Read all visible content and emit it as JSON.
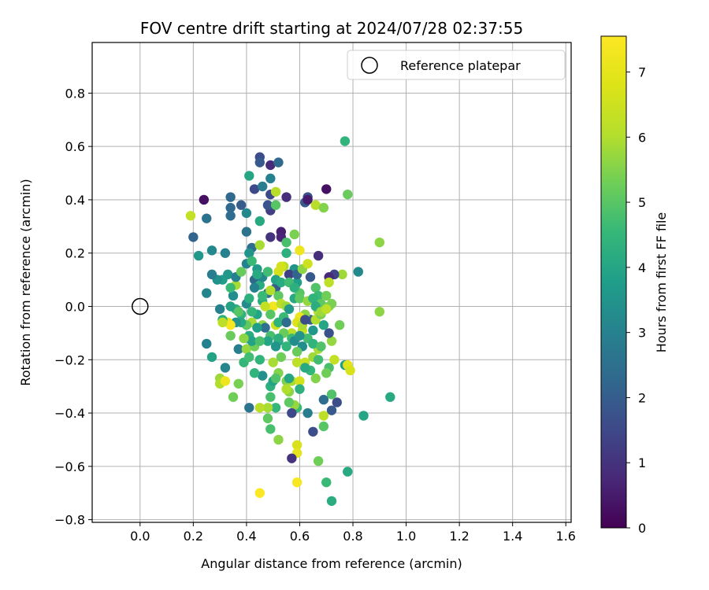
{
  "chart_data": {
    "type": "scatter",
    "title": "FOV centre drift starting at 2024/07/28 02:37:55",
    "xlabel": "Angular distance from reference (arcmin)",
    "ylabel": "Rotation from reference (arcmin)",
    "xlim": [
      -0.18,
      1.62
    ],
    "ylim": [
      -0.81,
      0.99
    ],
    "xticks": [
      0.0,
      0.2,
      0.4,
      0.6,
      0.8,
      1.0,
      1.2,
      1.4,
      1.6
    ],
    "xtick_labels": [
      "0.0",
      "0.2",
      "0.4",
      "0.6",
      "0.8",
      "1.0",
      "1.2",
      "1.4",
      "1.6"
    ],
    "yticks": [
      -0.8,
      -0.6,
      -0.4,
      -0.2,
      0.0,
      0.2,
      0.4,
      0.6,
      0.8
    ],
    "ytick_labels": [
      "−0.8",
      "−0.6",
      "−0.4",
      "−0.2",
      "0.0",
      "0.2",
      "0.4",
      "0.6",
      "0.8"
    ],
    "grid": true,
    "legend": {
      "placement": "top-right",
      "label": "Reference platepar"
    },
    "reference_point": {
      "x": 0.0,
      "y": 0.0
    },
    "colorbar": {
      "label": "Hours from first FF file",
      "range": [
        0,
        7.55
      ],
      "ticks": [
        0,
        1,
        2,
        3,
        4,
        5,
        6,
        7
      ],
      "tick_labels": [
        "0",
        "1",
        "2",
        "3",
        "4",
        "5",
        "6",
        "7"
      ],
      "colormap": "viridis"
    },
    "points": [
      [
        0.24,
        0.4,
        0.3
      ],
      [
        0.32,
        0.2,
        3.0
      ],
      [
        0.2,
        0.26,
        2.2
      ],
      [
        0.25,
        0.33,
        2.6
      ],
      [
        0.19,
        0.34,
        6.3
      ],
      [
        0.22,
        0.19,
        3.6
      ],
      [
        0.27,
        0.21,
        3.2
      ],
      [
        0.34,
        0.41,
        2.3
      ],
      [
        0.34,
        0.37,
        2.3
      ],
      [
        0.38,
        0.38,
        2.0
      ],
      [
        0.34,
        0.34,
        2.4
      ],
      [
        0.41,
        0.49,
        4.0
      ],
      [
        0.43,
        0.44,
        1.5
      ],
      [
        0.45,
        0.56,
        1.6
      ],
      [
        0.45,
        0.54,
        1.9
      ],
      [
        0.49,
        0.53,
        0.8
      ],
      [
        0.52,
        0.54,
        2.3
      ],
      [
        0.46,
        0.45,
        2.9
      ],
      [
        0.49,
        0.48,
        3.0
      ],
      [
        0.49,
        0.42,
        1.5
      ],
      [
        0.51,
        0.43,
        6.1
      ],
      [
        0.55,
        0.41,
        0.9
      ],
      [
        0.4,
        0.35,
        3.2
      ],
      [
        0.45,
        0.32,
        4.1
      ],
      [
        0.49,
        0.36,
        1.3
      ],
      [
        0.48,
        0.38,
        1.8
      ],
      [
        0.51,
        0.38,
        5.0
      ],
      [
        0.53,
        0.28,
        0.6
      ],
      [
        0.53,
        0.26,
        0.7
      ],
      [
        0.49,
        0.26,
        1.0
      ],
      [
        0.4,
        0.28,
        2.6
      ],
      [
        0.42,
        0.22,
        2.4
      ],
      [
        0.41,
        0.2,
        3.5
      ],
      [
        0.45,
        0.23,
        5.9
      ],
      [
        0.55,
        0.24,
        4.8
      ],
      [
        0.55,
        0.2,
        4.3
      ],
      [
        0.58,
        0.27,
        5.4
      ],
      [
        0.6,
        0.21,
        7.2
      ],
      [
        0.62,
        0.39,
        1.9
      ],
      [
        0.63,
        0.41,
        1.7
      ],
      [
        0.63,
        0.4,
        0.5
      ],
      [
        0.66,
        0.38,
        6.1
      ],
      [
        0.7,
        0.44,
        0.3
      ],
      [
        0.69,
        0.37,
        5.5
      ],
      [
        0.77,
        0.62,
        4.4
      ],
      [
        0.78,
        0.42,
        5.2
      ],
      [
        0.9,
        0.24,
        5.6
      ],
      [
        0.82,
        0.13,
        3.2
      ],
      [
        0.76,
        0.12,
        5.8
      ],
      [
        0.73,
        0.12,
        1.4
      ],
      [
        0.67,
        0.19,
        0.9
      ],
      [
        0.71,
        0.11,
        0.8
      ],
      [
        0.71,
        0.09,
        6.2
      ],
      [
        0.72,
        0.01,
        5.4
      ],
      [
        0.75,
        -0.07,
        5.3
      ],
      [
        0.72,
        -0.13,
        5.7
      ],
      [
        0.73,
        -0.2,
        6.3
      ],
      [
        0.77,
        -0.22,
        3.8
      ],
      [
        0.78,
        -0.22,
        6.9
      ],
      [
        0.79,
        -0.24,
        6.7
      ],
      [
        0.71,
        -0.23,
        4.8
      ],
      [
        0.7,
        -0.25,
        5.3
      ],
      [
        0.74,
        -0.36,
        1.6
      ],
      [
        0.72,
        -0.33,
        4.9
      ],
      [
        0.72,
        -0.39,
        1.9
      ],
      [
        0.69,
        -0.35,
        2.4
      ],
      [
        0.69,
        -0.41,
        6.2
      ],
      [
        0.65,
        -0.47,
        1.6
      ],
      [
        0.69,
        -0.45,
        5.0
      ],
      [
        0.67,
        -0.58,
        5.3
      ],
      [
        0.7,
        -0.66,
        4.6
      ],
      [
        0.72,
        -0.73,
        4.2
      ],
      [
        0.78,
        -0.62,
        4.1
      ],
      [
        0.84,
        -0.41,
        4.0
      ],
      [
        0.94,
        -0.34,
        4.1
      ],
      [
        0.9,
        -0.02,
        5.6
      ],
      [
        0.63,
        -0.4,
        2.9
      ],
      [
        0.59,
        -0.38,
        4.6
      ],
      [
        0.58,
        -0.37,
        5.7
      ],
      [
        0.56,
        -0.36,
        5.1
      ],
      [
        0.57,
        -0.4,
        1.5
      ],
      [
        0.56,
        -0.32,
        5.6
      ],
      [
        0.55,
        -0.28,
        5.4
      ],
      [
        0.57,
        -0.28,
        5.9
      ],
      [
        0.6,
        -0.28,
        6.6
      ],
      [
        0.59,
        -0.21,
        6.2
      ],
      [
        0.62,
        -0.21,
        6.4
      ],
      [
        0.65,
        -0.19,
        5.8
      ],
      [
        0.64,
        -0.24,
        4.5
      ],
      [
        0.66,
        -0.27,
        5.5
      ],
      [
        0.67,
        -0.16,
        5.9
      ],
      [
        0.59,
        -0.52,
        6.7
      ],
      [
        0.59,
        -0.55,
        7.0
      ],
      [
        0.57,
        -0.57,
        1.0
      ],
      [
        0.59,
        -0.66,
        7.4
      ],
      [
        0.45,
        -0.7,
        7.5
      ],
      [
        0.52,
        -0.5,
        5.6
      ],
      [
        0.49,
        -0.46,
        4.8
      ],
      [
        0.48,
        -0.42,
        5.1
      ],
      [
        0.49,
        -0.34,
        4.8
      ],
      [
        0.49,
        -0.3,
        4.3
      ],
      [
        0.51,
        -0.38,
        4.5
      ],
      [
        0.5,
        -0.28,
        3.9
      ],
      [
        0.46,
        -0.26,
        6.0
      ],
      [
        0.48,
        -0.38,
        5.9
      ],
      [
        0.45,
        -0.38,
        6.1
      ],
      [
        0.41,
        -0.38,
        2.6
      ],
      [
        0.37,
        -0.29,
        5.4
      ],
      [
        0.32,
        -0.23,
        3.1
      ],
      [
        0.3,
        -0.27,
        5.8
      ],
      [
        0.3,
        -0.29,
        6.0
      ],
      [
        0.32,
        -0.28,
        7.2
      ],
      [
        0.35,
        -0.34,
        5.3
      ],
      [
        0.37,
        -0.16,
        2.9
      ],
      [
        0.39,
        -0.21,
        6.6
      ],
      [
        0.41,
        -0.12,
        3.2
      ],
      [
        0.4,
        -0.16,
        5.7
      ],
      [
        0.43,
        -0.15,
        5.3
      ],
      [
        0.45,
        -0.2,
        4.4
      ],
      [
        0.5,
        -0.21,
        5.9
      ],
      [
        0.53,
        -0.19,
        5.3
      ],
      [
        0.55,
        -0.15,
        4.4
      ],
      [
        0.52,
        -0.13,
        4.0
      ],
      [
        0.49,
        -0.11,
        4.8
      ],
      [
        0.46,
        -0.07,
        5.6
      ],
      [
        0.44,
        -0.03,
        4.0
      ],
      [
        0.42,
        -0.06,
        5.9
      ],
      [
        0.4,
        -0.07,
        5.1
      ],
      [
        0.38,
        -0.03,
        4.4
      ],
      [
        0.36,
        -0.01,
        4.3
      ],
      [
        0.34,
        0.0,
        3.9
      ],
      [
        0.35,
        0.04,
        3.3
      ],
      [
        0.36,
        0.08,
        5.9
      ],
      [
        0.34,
        0.07,
        4.6
      ],
      [
        0.31,
        0.1,
        3.8
      ],
      [
        0.33,
        0.12,
        3.6
      ],
      [
        0.36,
        0.11,
        3.0
      ],
      [
        0.38,
        0.13,
        5.2
      ],
      [
        0.4,
        0.16,
        3.0
      ],
      [
        0.42,
        0.17,
        4.6
      ],
      [
        0.44,
        0.14,
        3.7
      ],
      [
        0.43,
        0.1,
        2.3
      ],
      [
        0.45,
        0.08,
        4.2
      ],
      [
        0.46,
        0.11,
        3.2
      ],
      [
        0.48,
        0.13,
        4.7
      ],
      [
        0.51,
        0.07,
        2.0
      ],
      [
        0.52,
        0.04,
        5.1
      ],
      [
        0.5,
        0.0,
        7.3
      ],
      [
        0.53,
        0.01,
        6.1
      ],
      [
        0.55,
        0.0,
        5.8
      ],
      [
        0.54,
        -0.04,
        4.6
      ],
      [
        0.56,
        -0.01,
        3.6
      ],
      [
        0.58,
        0.03,
        4.1
      ],
      [
        0.6,
        0.05,
        5.0
      ],
      [
        0.59,
        0.09,
        3.8
      ],
      [
        0.58,
        0.14,
        3.5
      ],
      [
        0.56,
        0.12,
        1.3
      ],
      [
        0.54,
        0.15,
        6.0
      ],
      [
        0.52,
        0.13,
        6.6
      ],
      [
        0.53,
        0.15,
        6.6
      ],
      [
        0.59,
        0.12,
        2.2
      ],
      [
        0.61,
        0.14,
        5.6
      ],
      [
        0.63,
        0.16,
        6.5
      ],
      [
        0.64,
        0.11,
        1.9
      ],
      [
        0.66,
        0.07,
        4.9
      ],
      [
        0.67,
        0.04,
        4.6
      ],
      [
        0.68,
        0.01,
        5.1
      ],
      [
        0.7,
        0.04,
        5.3
      ],
      [
        0.71,
        0.0,
        5.4
      ],
      [
        0.67,
        -0.02,
        6.1
      ],
      [
        0.64,
        -0.05,
        2.0
      ],
      [
        0.62,
        -0.03,
        5.6
      ],
      [
        0.6,
        -0.04,
        7.2
      ],
      [
        0.59,
        -0.06,
        6.8
      ],
      [
        0.61,
        -0.09,
        6.3
      ],
      [
        0.63,
        -0.12,
        4.7
      ],
      [
        0.65,
        -0.14,
        4.4
      ],
      [
        0.61,
        -0.15,
        3.3
      ],
      [
        0.59,
        -0.17,
        5.2
      ],
      [
        0.57,
        -0.1,
        6.1
      ],
      [
        0.54,
        -0.1,
        5.2
      ],
      [
        0.52,
        -0.12,
        4.3
      ],
      [
        0.51,
        -0.15,
        3.5
      ],
      [
        0.48,
        -0.13,
        4.0
      ],
      [
        0.47,
        -0.08,
        2.5
      ],
      [
        0.44,
        -0.08,
        3.8
      ],
      [
        0.42,
        -0.02,
        4.5
      ],
      [
        0.4,
        0.01,
        3.3
      ],
      [
        0.38,
        -0.06,
        4.1
      ],
      [
        0.36,
        -0.06,
        3.5
      ],
      [
        0.33,
        -0.06,
        7.1
      ],
      [
        0.34,
        -0.07,
        7.4
      ],
      [
        0.31,
        -0.05,
        4.3
      ],
      [
        0.3,
        -0.01,
        3.0
      ],
      [
        0.29,
        0.1,
        3.4
      ],
      [
        0.27,
        0.12,
        2.9
      ],
      [
        0.25,
        0.05,
        3.1
      ],
      [
        0.25,
        -0.14,
        3.0
      ],
      [
        0.27,
        -0.19,
        3.9
      ],
      [
        0.31,
        -0.06,
        6.2
      ],
      [
        0.34,
        -0.11,
        5.2
      ],
      [
        0.39,
        -0.21,
        4.5
      ],
      [
        0.41,
        -0.11,
        4.2
      ],
      [
        0.42,
        -0.13,
        3.9
      ],
      [
        0.45,
        -0.13,
        4.8
      ],
      [
        0.46,
        0.02,
        4.2
      ],
      [
        0.48,
        0.05,
        2.6
      ],
      [
        0.49,
        -0.03,
        5.0
      ],
      [
        0.51,
        -0.07,
        6.5
      ],
      [
        0.52,
        -0.06,
        4.4
      ],
      [
        0.55,
        -0.06,
        2.4
      ],
      [
        0.57,
        -0.12,
        4.6
      ],
      [
        0.58,
        -0.13,
        3.3
      ],
      [
        0.6,
        -0.11,
        3.5
      ],
      [
        0.61,
        -0.07,
        5.9
      ],
      [
        0.62,
        -0.05,
        1.6
      ],
      [
        0.65,
        -0.09,
        3.6
      ],
      [
        0.66,
        -0.05,
        6.0
      ],
      [
        0.68,
        -0.03,
        5.4
      ],
      [
        0.69,
        -0.07,
        4.0
      ],
      [
        0.71,
        -0.1,
        1.7
      ],
      [
        0.68,
        -0.15,
        4.9
      ],
      [
        0.67,
        -0.2,
        4.7
      ],
      [
        0.62,
        -0.23,
        4.1
      ],
      [
        0.6,
        -0.31,
        4.3
      ],
      [
        0.55,
        -0.31,
        6.0
      ],
      [
        0.56,
        -0.27,
        4.0
      ],
      [
        0.52,
        -0.25,
        5.5
      ],
      [
        0.51,
        -0.27,
        4.9
      ],
      [
        0.46,
        -0.26,
        3.4
      ],
      [
        0.43,
        -0.25,
        4.4
      ],
      [
        0.41,
        -0.19,
        4.7
      ],
      [
        0.39,
        -0.12,
        5.6
      ],
      [
        0.37,
        -0.02,
        5.0
      ],
      [
        0.41,
        0.03,
        4.3
      ],
      [
        0.43,
        0.07,
        3.0
      ],
      [
        0.44,
        0.12,
        4.1
      ],
      [
        0.46,
        0.04,
        4.6
      ],
      [
        0.47,
        0.0,
        6.3
      ],
      [
        0.49,
        0.06,
        6.0
      ],
      [
        0.51,
        0.1,
        3.9
      ],
      [
        0.53,
        0.09,
        4.2
      ],
      [
        0.56,
        0.09,
        4.7
      ],
      [
        0.58,
        0.07,
        4.3
      ],
      [
        0.6,
        0.03,
        5.1
      ],
      [
        0.63,
        0.02,
        5.7
      ],
      [
        0.65,
        0.03,
        4.4
      ],
      [
        0.66,
        0.0,
        4.2
      ],
      [
        0.68,
        -0.02,
        5.8
      ],
      [
        0.7,
        -0.01,
        6.2
      ]
    ]
  }
}
